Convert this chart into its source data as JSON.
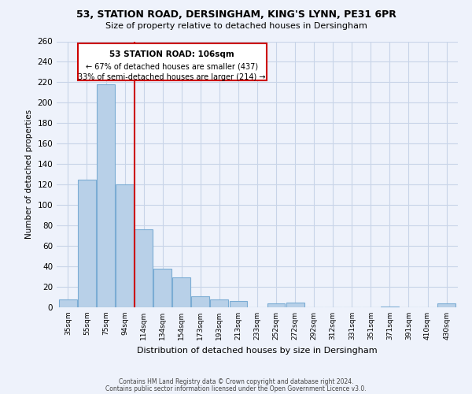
{
  "title1": "53, STATION ROAD, DERSINGHAM, KING'S LYNN, PE31 6PR",
  "title2": "Size of property relative to detached houses in Dersingham",
  "xlabel": "Distribution of detached houses by size in Dersingham",
  "ylabel": "Number of detached properties",
  "categories": [
    "35sqm",
    "55sqm",
    "75sqm",
    "94sqm",
    "114sqm",
    "134sqm",
    "154sqm",
    "173sqm",
    "193sqm",
    "213sqm",
    "233sqm",
    "252sqm",
    "272sqm",
    "292sqm",
    "312sqm",
    "331sqm",
    "351sqm",
    "371sqm",
    "391sqm",
    "410sqm",
    "430sqm"
  ],
  "values": [
    8,
    125,
    218,
    120,
    76,
    38,
    29,
    11,
    8,
    6,
    0,
    4,
    5,
    0,
    0,
    0,
    0,
    1,
    0,
    0,
    4
  ],
  "bar_color": "#b8d0e8",
  "bar_edge_color": "#7bacd4",
  "vline_x_idx": 3.5,
  "vline_color": "#cc0000",
  "annotation_title": "53 STATION ROAD: 106sqm",
  "annotation_line1": "← 67% of detached houses are smaller (437)",
  "annotation_line2": "33% of semi-detached houses are larger (214) →",
  "box_edge_color": "#cc0000",
  "ylim": [
    0,
    260
  ],
  "yticks": [
    0,
    20,
    40,
    60,
    80,
    100,
    120,
    140,
    160,
    180,
    200,
    220,
    240,
    260
  ],
  "footer1": "Contains HM Land Registry data © Crown copyright and database right 2024.",
  "footer2": "Contains public sector information licensed under the Open Government Licence v3.0.",
  "bg_color": "#eef2fb"
}
